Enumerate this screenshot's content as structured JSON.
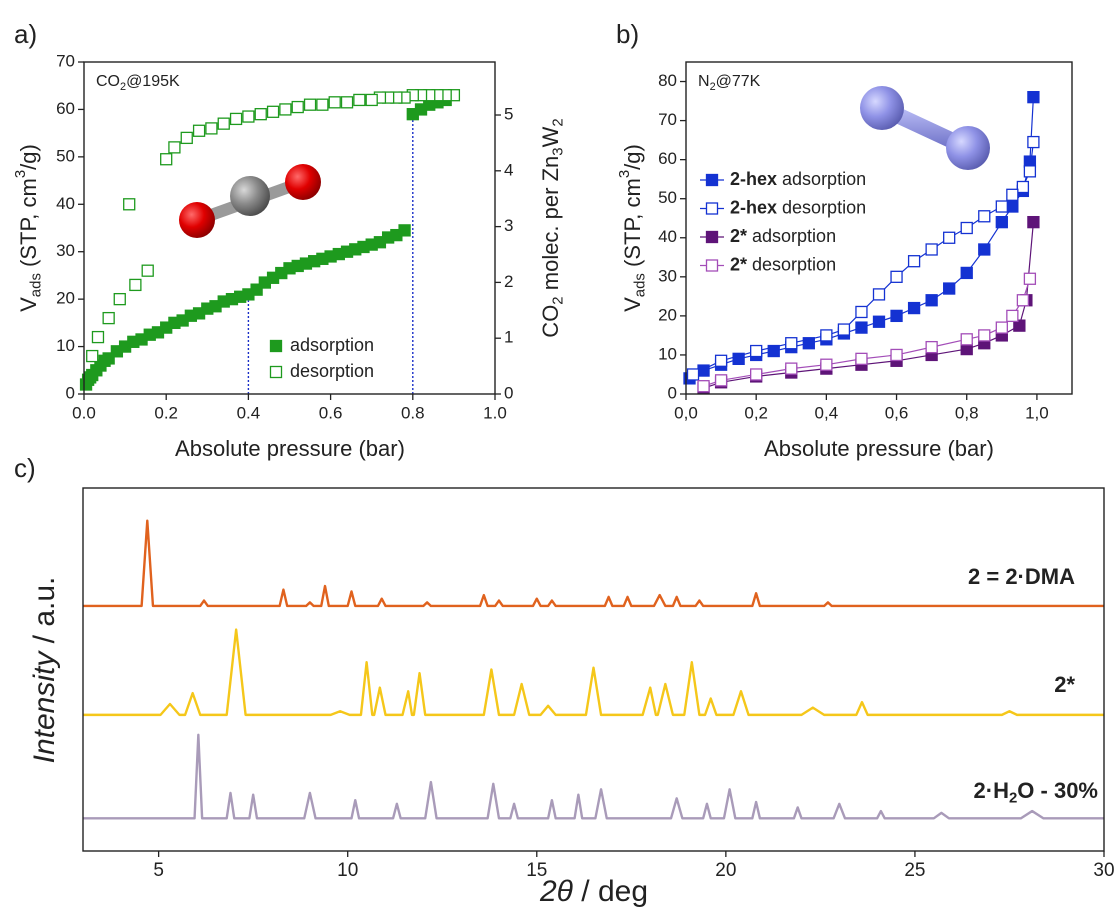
{
  "chart_data": [
    {
      "type": "scatter",
      "panel": "a)",
      "annotation": [
        {
          "text": "CO"
        },
        {
          "text": "2",
          "sub": true
        },
        {
          "text": "@195K"
        }
      ],
      "xlabel": "Absolute pressure (bar)",
      "ylabel": [
        {
          "text": "V"
        },
        {
          "text": "ads",
          "sub": true
        },
        {
          "text": " (STP, cm"
        },
        {
          "text": "3",
          "sup": true
        },
        {
          "text": "/g)"
        }
      ],
      "y2label": [
        {
          "text": "CO"
        },
        {
          "text": "2",
          "sub": true
        },
        {
          "text": " molec. per Zn"
        },
        {
          "text": "3",
          "sub": true
        },
        {
          "text": "W"
        },
        {
          "text": "2",
          "sub": true
        }
      ],
      "xlim": [
        0,
        1
      ],
      "xticks": [
        {
          "value": 0,
          "label": "0.0"
        },
        0.2,
        0.4,
        0.6,
        0.8,
        {
          "value": 1,
          "label": "1.0"
        }
      ],
      "ylim": [
        0,
        70
      ],
      "yticks": [
        0,
        10,
        20,
        30,
        40,
        50,
        60,
        70
      ],
      "y2lim": [
        0,
        5.95
      ],
      "y2ticks": [
        0,
        1,
        2,
        3,
        4,
        5
      ],
      "legend": true,
      "grid": false,
      "vlines": [
        {
          "x": 0.4,
          "y": 20
        },
        {
          "x": 0.8,
          "y": 59
        }
      ],
      "vline_color": "#1a2fc8",
      "series": [
        {
          "name": "adsorption",
          "color": "#1e9a1e",
          "marker": "filled",
          "x": [
            0.005,
            0.01,
            0.015,
            0.02,
            0.03,
            0.04,
            0.05,
            0.06,
            0.08,
            0.1,
            0.12,
            0.14,
            0.16,
            0.18,
            0.2,
            0.22,
            0.24,
            0.26,
            0.28,
            0.3,
            0.32,
            0.34,
            0.36,
            0.38,
            0.4,
            0.42,
            0.44,
            0.46,
            0.48,
            0.5,
            0.52,
            0.54,
            0.56,
            0.58,
            0.6,
            0.62,
            0.64,
            0.66,
            0.68,
            0.7,
            0.72,
            0.74,
            0.76,
            0.78,
            0.8,
            0.82,
            0.84,
            0.86,
            0.88
          ],
          "values": [
            2,
            3,
            3.5,
            4,
            5,
            6,
            7,
            7.5,
            9,
            10,
            11,
            11.5,
            12.5,
            13,
            14,
            15,
            15.5,
            16.5,
            17,
            18,
            18.5,
            19.5,
            20,
            20.5,
            21,
            22,
            23.5,
            24.5,
            25.5,
            26.5,
            27,
            27.5,
            28,
            28.5,
            29,
            29.5,
            30,
            30.5,
            31,
            31.5,
            32,
            33,
            33.5,
            34.5,
            59,
            60,
            61,
            61.5,
            62
          ]
        },
        {
          "name": "desorption",
          "color": "#1e9a1e",
          "marker": "open",
          "x": [
            0.9,
            0.88,
            0.86,
            0.84,
            0.82,
            0.8,
            0.78,
            0.76,
            0.74,
            0.72,
            0.7,
            0.67,
            0.64,
            0.61,
            0.58,
            0.55,
            0.52,
            0.49,
            0.46,
            0.43,
            0.4,
            0.37,
            0.34,
            0.31,
            0.28,
            0.25,
            0.22,
            0.2,
            0.155,
            0.11,
            0.125,
            0.087,
            0.06,
            0.034,
            0.02
          ],
          "values": [
            63,
            63,
            63,
            63,
            63,
            63,
            62.5,
            62.5,
            62.5,
            62.5,
            62,
            62,
            61.5,
            61.5,
            61,
            61,
            60.5,
            60,
            59.5,
            59,
            58.5,
            58,
            57,
            56,
            55.5,
            54,
            52,
            49.5,
            26,
            40,
            23,
            20,
            16,
            12,
            8
          ]
        }
      ]
    },
    {
      "type": "line",
      "panel": "b)",
      "annotation": [
        {
          "text": "N"
        },
        {
          "text": "2",
          "sub": true
        },
        {
          "text": "@77K"
        }
      ],
      "xlabel": "Absolute pressure (bar)",
      "ylabel": [
        {
          "text": "V"
        },
        {
          "text": "ads",
          "sub": true
        },
        {
          "text": " (STP, cm"
        },
        {
          "text": "3",
          "sup": true
        },
        {
          "text": "/g)"
        }
      ],
      "xlim": [
        0,
        1.1
      ],
      "xticks": [
        {
          "value": 0,
          "label": "0,0"
        },
        {
          "value": 0.2,
          "label": "0,2"
        },
        {
          "value": 0.4,
          "label": "0,4"
        },
        {
          "value": 0.6,
          "label": "0,6"
        },
        {
          "value": 0.8,
          "label": "0,8"
        },
        {
          "value": 1,
          "label": "1,0"
        }
      ],
      "ylim": [
        0,
        85
      ],
      "yticks": [
        0,
        10,
        20,
        30,
        40,
        50,
        60,
        70,
        80
      ],
      "legend": true,
      "grid": false,
      "series": [
        {
          "name": [
            {
              "text": "2-hex",
              "bold": true
            },
            {
              "text": " adsorption"
            }
          ],
          "color": "#1432d2",
          "marker": "filled",
          "x": [
            0.01,
            0.05,
            0.1,
            0.15,
            0.2,
            0.25,
            0.3,
            0.35,
            0.4,
            0.45,
            0.5,
            0.55,
            0.6,
            0.65,
            0.7,
            0.75,
            0.8,
            0.85,
            0.9,
            0.93,
            0.96,
            0.98,
            0.99
          ],
          "values": [
            4,
            6,
            7.5,
            9,
            10,
            11,
            12,
            13,
            14,
            15.5,
            17,
            18.5,
            20,
            22,
            24,
            27,
            31,
            37,
            44,
            48,
            52,
            59.5,
            76
          ]
        },
        {
          "name": [
            {
              "text": "2-hex",
              "bold": true
            },
            {
              "text": " desorption"
            }
          ],
          "color": "#1432d2",
          "marker": "open",
          "x": [
            0.99,
            0.98,
            0.96,
            0.93,
            0.9,
            0.85,
            0.8,
            0.75,
            0.7,
            0.65,
            0.6,
            0.55,
            0.5,
            0.45,
            0.4,
            0.3,
            0.2,
            0.1,
            0.02
          ],
          "values": [
            64.5,
            57,
            53,
            51,
            48,
            45.5,
            42.5,
            40,
            37,
            34,
            30,
            25.5,
            21,
            16.5,
            15,
            13,
            11,
            8.5,
            5
          ]
        },
        {
          "name": [
            {
              "text": "2*",
              "bold": true
            },
            {
              "text": " adsorption"
            }
          ],
          "color": "#5e1478",
          "marker": "filled",
          "x": [
            0.05,
            0.1,
            0.2,
            0.3,
            0.4,
            0.5,
            0.6,
            0.7,
            0.8,
            0.85,
            0.9,
            0.95,
            0.97,
            0.99
          ],
          "values": [
            1.5,
            3,
            4.5,
            5.5,
            6.5,
            7.5,
            8.5,
            10,
            11.5,
            13,
            15,
            17.5,
            24,
            44
          ]
        },
        {
          "name": [
            {
              "text": "2*",
              "bold": true
            },
            {
              "text": " desorption"
            }
          ],
          "color": "#a34db8",
          "marker": "open",
          "x": [
            0.98,
            0.96,
            0.93,
            0.9,
            0.85,
            0.8,
            0.7,
            0.6,
            0.5,
            0.4,
            0.3,
            0.2,
            0.1,
            0.05
          ],
          "values": [
            29.5,
            24,
            20,
            17,
            15,
            14,
            12,
            10,
            9,
            7.5,
            6.5,
            5,
            3.5,
            2
          ]
        }
      ]
    },
    {
      "type": "line",
      "panel": "c)",
      "xlabel": [
        {
          "text": "2θ",
          "italic": true
        },
        {
          "text": " / deg"
        }
      ],
      "ylabel": [
        {
          "text": "Intensity",
          "italic": true
        },
        {
          "text": " / a.u."
        }
      ],
      "xlim": [
        3,
        30
      ],
      "xticks": [
        5,
        10,
        15,
        20,
        25,
        30
      ],
      "ylim": [
        0,
        100
      ],
      "legend": false,
      "grid": false,
      "series": [
        {
          "name": "2 =  2·DMA",
          "color": "#e0621e",
          "x": [
            3,
            4.55,
            4.7,
            4.85,
            6.1,
            6.2,
            6.3,
            8.2,
            8.3,
            8.4,
            8.9,
            9.0,
            9.1,
            9.3,
            9.4,
            9.5,
            10.0,
            10.1,
            10.2,
            10.8,
            10.9,
            11.0,
            12.0,
            12.1,
            12.2,
            13.5,
            13.6,
            13.7,
            13.9,
            14.0,
            14.1,
            14.9,
            15.0,
            15.1,
            15.3,
            15.4,
            15.5,
            16.8,
            16.9,
            17.0,
            17.3,
            17.4,
            17.5,
            18.1,
            18.25,
            18.4,
            18.6,
            18.7,
            18.8,
            19.2,
            19.3,
            19.4,
            20.7,
            20.8,
            20.9,
            22.6,
            22.7,
            22.8,
            30
          ],
          "values": [
            67.5,
            67.5,
            91,
            67.5,
            67.5,
            69,
            67.5,
            67.5,
            72,
            67.5,
            67.5,
            68.5,
            67.5,
            67.5,
            73,
            67.5,
            67.5,
            71.5,
            67.5,
            67.5,
            69.5,
            67.5,
            67.5,
            68.5,
            67.5,
            67.5,
            70.5,
            67.5,
            67.5,
            69,
            67.5,
            67.5,
            69.5,
            67.5,
            67.5,
            69,
            67.5,
            67.5,
            70,
            67.5,
            67.5,
            70,
            67.5,
            67.5,
            70.5,
            67.5,
            67.5,
            70,
            67.5,
            67.5,
            69,
            67.5,
            67.5,
            71,
            67.5,
            67.5,
            68.5,
            67.5,
            67.5
          ]
        },
        {
          "name": "2*",
          "color": "#f5c71a",
          "x": [
            3,
            5.05,
            5.3,
            5.55,
            5.7,
            5.9,
            6.1,
            6.8,
            7.05,
            7.3,
            9.55,
            9.8,
            10.05,
            10.35,
            10.5,
            10.65,
            10.7,
            10.85,
            11.0,
            11.45,
            11.6,
            11.7,
            11.75,
            11.9,
            12.05,
            13.6,
            13.8,
            14.0,
            14.4,
            14.6,
            14.8,
            15.1,
            15.3,
            15.5,
            16.3,
            16.5,
            16.7,
            17.8,
            18.0,
            18.15,
            18.2,
            18.4,
            18.6,
            18.9,
            19.1,
            19.3,
            19.45,
            19.6,
            19.75,
            20.2,
            20.4,
            20.6,
            22.0,
            22.3,
            22.6,
            23.45,
            23.6,
            23.75,
            27.3,
            27.5,
            27.7,
            30
          ],
          "values": [
            37.5,
            37.5,
            40.5,
            37.5,
            37.5,
            43.5,
            37.5,
            37.5,
            61,
            37.5,
            37.5,
            38.5,
            37.5,
            37.5,
            52,
            37.5,
            37.5,
            45,
            37.5,
            37.5,
            44,
            37.5,
            37.5,
            49,
            37.5,
            37.5,
            50,
            37.5,
            37.5,
            46,
            37.5,
            37.5,
            40,
            37.5,
            37.5,
            50.5,
            37.5,
            37.5,
            45,
            37.5,
            37.5,
            46,
            37.5,
            37.5,
            52,
            37.5,
            37.5,
            42,
            37.5,
            37.5,
            44,
            37.5,
            37.5,
            39.5,
            37.5,
            37.5,
            41,
            37.5,
            37.5,
            38.5,
            37.5,
            37.5
          ]
        },
        {
          "name": [
            {
              "text": "2·H"
            },
            {
              "text": "2",
              "sub": true
            },
            {
              "text": "O - 30%"
            }
          ],
          "color": "#a99bb9",
          "x": [
            3,
            5.95,
            6.05,
            6.15,
            6.8,
            6.9,
            7.0,
            7.4,
            7.5,
            7.6,
            8.85,
            9.0,
            9.15,
            10.1,
            10.2,
            10.3,
            11.2,
            11.3,
            11.4,
            12.05,
            12.2,
            12.35,
            13.7,
            13.85,
            14.0,
            14.3,
            14.4,
            14.5,
            15.3,
            15.4,
            15.5,
            16.0,
            16.1,
            16.2,
            16.55,
            16.7,
            16.85,
            18.55,
            18.7,
            18.85,
            19.4,
            19.5,
            19.6,
            19.95,
            20.1,
            20.25,
            20.7,
            20.8,
            20.9,
            21.8,
            21.9,
            22.0,
            22.85,
            23.0,
            23.15,
            24.0,
            24.1,
            24.2,
            25.5,
            25.7,
            25.9,
            27.8,
            28.1,
            28.4,
            30
          ],
          "values": [
            9,
            9,
            32,
            9,
            9,
            16,
            9,
            9,
            15.5,
            9,
            9,
            16,
            9,
            9,
            14,
            9,
            9,
            13,
            9,
            9,
            19,
            9,
            9,
            18.5,
            9,
            9,
            13,
            9,
            9,
            14,
            9,
            9,
            15.5,
            9,
            9,
            17,
            9,
            9,
            14.5,
            9,
            9,
            13,
            9,
            9,
            17,
            9,
            9,
            13.5,
            9,
            9,
            12,
            9,
            9,
            13,
            9,
            9,
            11,
            9,
            9,
            10.5,
            9,
            9,
            11,
            9,
            9
          ]
        }
      ]
    }
  ]
}
